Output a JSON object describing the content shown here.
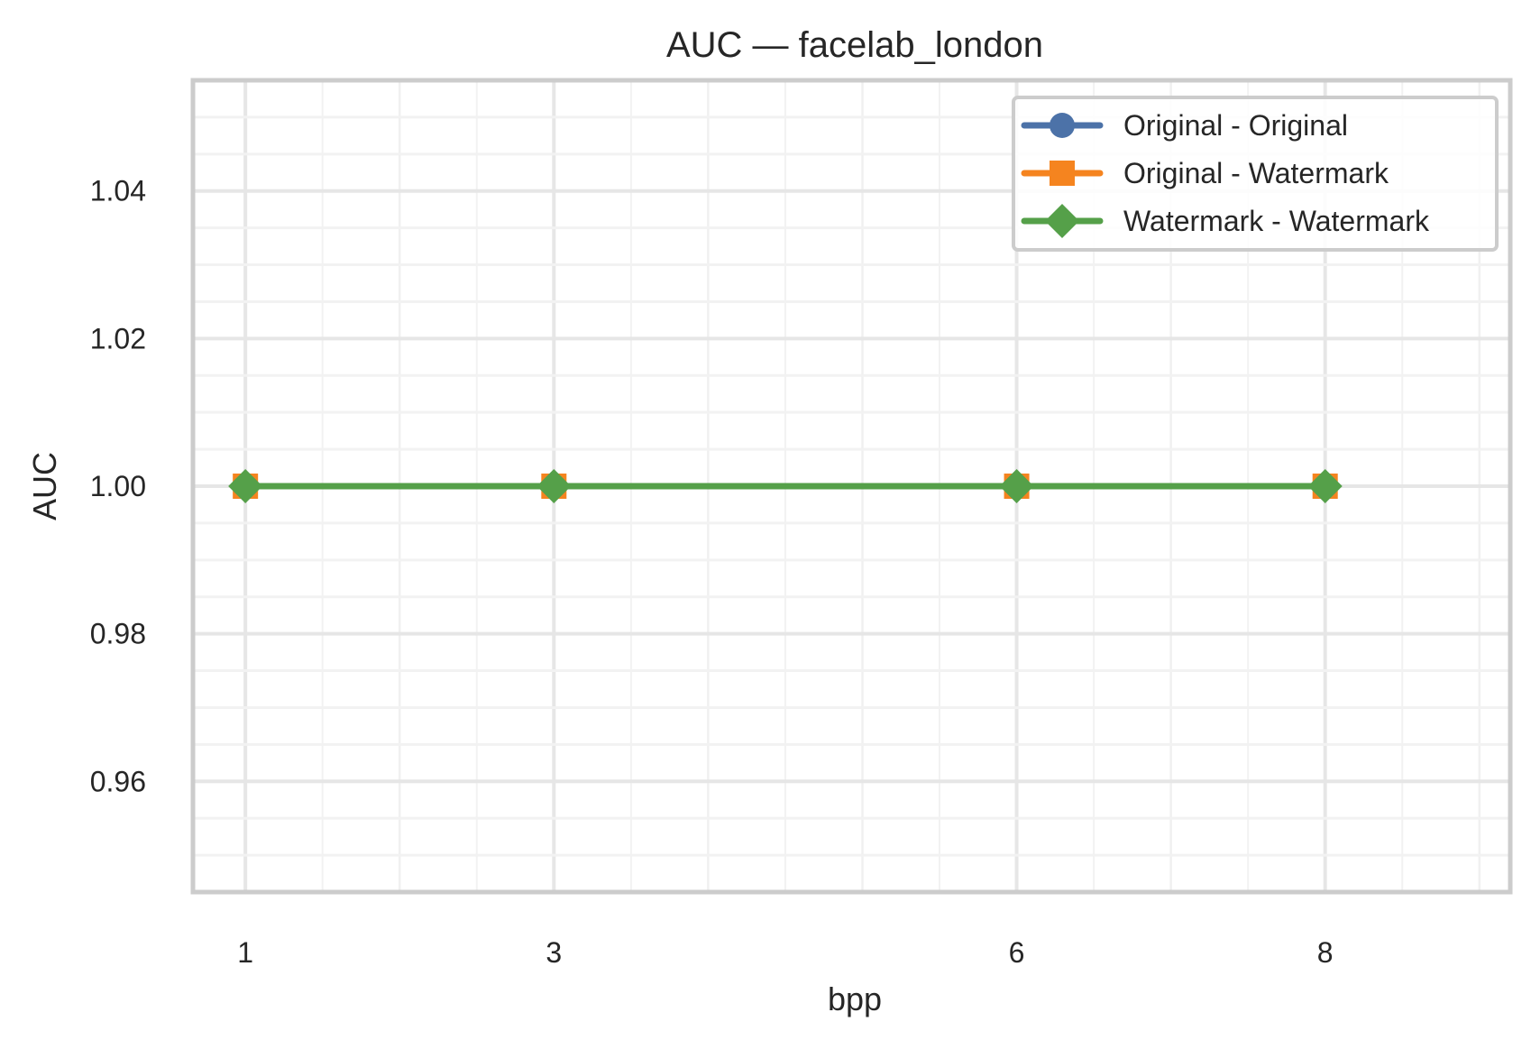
{
  "chart_data": {
    "type": "line",
    "title": "AUC — facelab_london",
    "xlabel": "bpp",
    "ylabel": "AUC",
    "x": [
      1,
      3,
      6,
      8
    ],
    "x_tick_labels": [
      "1",
      "3",
      "6",
      "8"
    ],
    "xlim": [
      0.66,
      9.2
    ],
    "ylim": [
      0.945,
      1.055
    ],
    "y_ticks": [
      0.96,
      0.98,
      1.0,
      1.02,
      1.04
    ],
    "y_tick_labels": [
      "0.96",
      "0.98",
      "1.00",
      "1.02",
      "1.04"
    ],
    "grid": true,
    "legend_position": "top-right",
    "series": [
      {
        "name": "Original - Original",
        "values": [
          1.0,
          1.0,
          1.0,
          1.0
        ],
        "color": "#4c72a8",
        "marker": "circle"
      },
      {
        "name": "Original - Watermark",
        "values": [
          1.0,
          1.0,
          1.0,
          1.0
        ],
        "color": "#f5841f",
        "marker": "square"
      },
      {
        "name": "Watermark - Watermark",
        "values": [
          1.0,
          1.0,
          1.0,
          1.0
        ],
        "color": "#55a049",
        "marker": "diamond"
      }
    ]
  }
}
